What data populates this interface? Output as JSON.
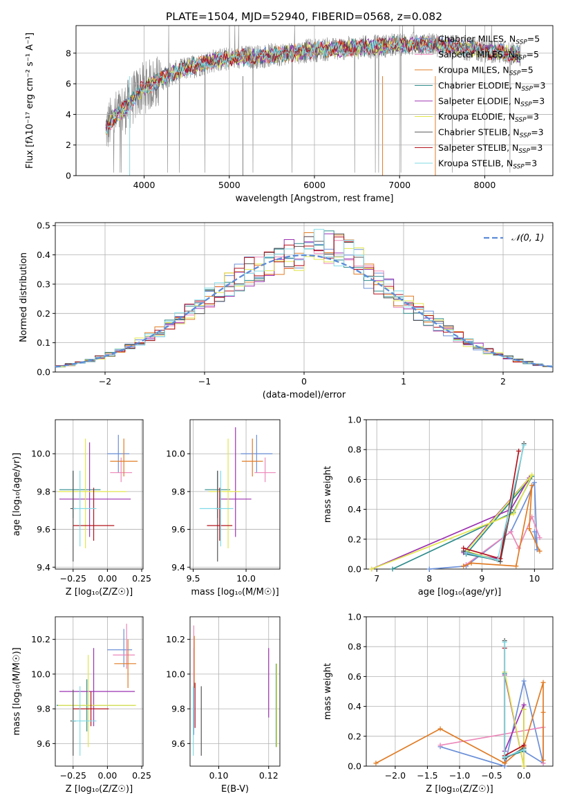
{
  "title": "PLATE=1504, MJD=52940, FIBERID=0568, z=0.082",
  "colors": {
    "Chabrier MILES": "#6a8fd8",
    "Salpeter MILES": "#ec87b9",
    "Kroupa MILES": "#e07b24",
    "Chabrier ELODIE": "#2e8b8b",
    "Salpeter ELODIE": "#9b30b0",
    "Kroupa ELODIE": "#e2e64a",
    "Chabrier STELIB": "#555555",
    "Salpeter STELIB": "#b3121b",
    "Kroupa STELIB": "#80dbe6",
    "gauss": "#5b8bd8",
    "data": "#808080"
  },
  "chart_data": [
    {
      "id": "spectrum",
      "type": "line",
      "xlabel": "wavelength [Angstrom, rest frame]",
      "ylabel": "Flux [fλ10⁻¹⁷ erg cm⁻² s⁻¹ A⁻¹]",
      "xlim": [
        3200,
        8800
      ],
      "ylim": [
        0,
        9.8
      ],
      "xticks": [
        4000,
        5000,
        6000,
        7000,
        8000
      ],
      "yticks": [
        0,
        2,
        4,
        6,
        8
      ],
      "legend": [
        "Chabrier MILES, N_SSP=5",
        "Salpeter MILES, N_SSP=5",
        "Kroupa MILES, N_SSP=5",
        "Chabrier ELODIE, N_SSP=3",
        "Salpeter ELODIE, N_SSP=3",
        "Kroupa ELODIE, N_SSP=3",
        "Chabrier STELIB, N_SSP=3",
        "Salpeter STELIB, N_SSP=3",
        "Kroupa STELIB, N_SSP=3"
      ],
      "legend_position": "right",
      "continuum": {
        "x": [
          3550,
          3650,
          3800,
          3950,
          4100,
          4300,
          4500,
          4800,
          5100,
          5400,
          5700,
          6000,
          6300,
          6600,
          6900,
          7200,
          7500,
          7800,
          8100,
          8400
        ],
        "y": [
          3.0,
          3.8,
          4.5,
          5.6,
          6.0,
          6.6,
          7.0,
          7.5,
          7.7,
          7.8,
          8.0,
          8.2,
          8.3,
          8.4,
          8.5,
          8.6,
          8.5,
          8.3,
          8.1,
          7.9
        ]
      }
    },
    {
      "id": "residual_hist",
      "type": "step",
      "xlabel": "(data-model)/error",
      "ylabel": "Normed distribution",
      "xlim": [
        -2.5,
        2.5
      ],
      "ylim": [
        0,
        0.51
      ],
      "xticks": [
        -2,
        -1,
        0,
        1,
        2
      ],
      "yticks": [
        0.0,
        0.1,
        0.2,
        0.3,
        0.4,
        0.5
      ],
      "legend": [
        "𝒩(0, 1)"
      ],
      "legend_position": "top-right",
      "bin_width": 0.1
    },
    {
      "id": "age_vs_Z",
      "type": "errorbar",
      "xlabel": "Z [log₁₀(Z/Z☉)]",
      "ylabel": "age  [log₁₀(age/yr)]",
      "xlim": [
        -0.38,
        0.26
      ],
      "ylim": [
        9.39,
        10.18
      ],
      "xticks": [
        -0.25,
        0.0,
        0.25
      ],
      "yticks": [
        9.4,
        9.6,
        9.8,
        10.0
      ],
      "points": [
        {
          "m": "Chabrier MILES",
          "x": 0.08,
          "xl": 0.08,
          "xh": 0.08,
          "y": 10.0,
          "yl": 0.1,
          "yh": 0.1
        },
        {
          "m": "Salpeter MILES",
          "x": 0.1,
          "xl": 0.08,
          "xh": 0.08,
          "y": 9.9,
          "yl": 0.05,
          "yh": 0.08
        },
        {
          "m": "Kroupa MILES",
          "x": 0.12,
          "xl": 0.1,
          "xh": 0.1,
          "y": 9.96,
          "yl": 0.08,
          "yh": 0.12
        },
        {
          "m": "Chabrier ELODIE",
          "x": -0.25,
          "xl": 0.1,
          "xh": 0.2,
          "y": 9.81,
          "yl": 0.15,
          "yh": 0.1
        },
        {
          "m": "Salpeter ELODIE",
          "x": -0.13,
          "xl": 0.22,
          "xh": 0.3,
          "y": 9.76,
          "yl": 0.2,
          "yh": 0.3
        },
        {
          "m": "Kroupa ELODIE",
          "x": -0.16,
          "xl": 0.2,
          "xh": 0.3,
          "y": 9.8,
          "yl": 0.3,
          "yh": 0.28
        },
        {
          "m": "Chabrier STELIB",
          "x": -0.25,
          "xl": 0.02,
          "xh": 0.02,
          "y": 9.71,
          "yl": 0.28,
          "yh": 0.2
        },
        {
          "m": "Salpeter STELIB",
          "x": -0.1,
          "xl": 0.15,
          "xh": 0.15,
          "y": 9.62,
          "yl": 0.08,
          "yh": 0.2
        },
        {
          "m": "Kroupa STELIB",
          "x": -0.2,
          "xl": 0.05,
          "xh": 0.12,
          "y": 9.71,
          "yl": 0.2,
          "yh": 0.2
        }
      ]
    },
    {
      "id": "age_vs_mass",
      "type": "errorbar",
      "xlabel": "mass [log₁₀(M/M☉)]",
      "ylabel": "",
      "xlim": [
        9.47,
        10.32
      ],
      "ylim": [
        9.39,
        10.18
      ],
      "xticks": [
        9.5,
        10.0
      ],
      "yticks": [
        9.4,
        9.6,
        9.8,
        10.0
      ],
      "points": [
        {
          "m": "Chabrier MILES",
          "x": 10.1,
          "xl": 0.15,
          "xh": 0.15,
          "y": 10.0,
          "yl": 0.1,
          "yh": 0.1
        },
        {
          "m": "Salpeter MILES",
          "x": 10.18,
          "xl": 0.1,
          "xh": 0.1,
          "y": 9.9,
          "yl": 0.05,
          "yh": 0.08
        },
        {
          "m": "Kroupa MILES",
          "x": 10.06,
          "xl": 0.1,
          "xh": 0.1,
          "y": 9.96,
          "yl": 0.08,
          "yh": 0.12
        },
        {
          "m": "Chabrier ELODIE",
          "x": 9.73,
          "xl": 0.12,
          "xh": 0.12,
          "y": 9.81,
          "yl": 0.15,
          "yh": 0.1
        },
        {
          "m": "Salpeter ELODIE",
          "x": 9.9,
          "xl": 0.15,
          "xh": 0.15,
          "y": 9.76,
          "yl": 0.2,
          "yh": 0.38
        },
        {
          "m": "Kroupa ELODIE",
          "x": 9.83,
          "xl": 0.18,
          "xh": 0.12,
          "y": 9.8,
          "yl": 0.3,
          "yh": 0.28
        },
        {
          "m": "Chabrier STELIB",
          "x": 9.73,
          "xl": 0.02,
          "xh": 0.02,
          "y": 9.71,
          "yl": 0.28,
          "yh": 0.2
        },
        {
          "m": "Salpeter STELIB",
          "x": 9.75,
          "xl": 0.12,
          "xh": 0.12,
          "y": 9.62,
          "yl": 0.08,
          "yh": 0.2
        },
        {
          "m": "Kroupa STELIB",
          "x": 9.76,
          "xl": 0.2,
          "xh": 0.12,
          "y": 9.71,
          "yl": 0.2,
          "yh": 0.2
        }
      ]
    },
    {
      "id": "weight_vs_age",
      "type": "line",
      "xlabel": "age  [log₁₀(age/yr)]",
      "ylabel": "mass weight",
      "xlim": [
        6.8,
        10.35
      ],
      "ylim": [
        0,
        1.0
      ],
      "xticks": [
        7,
        8,
        9,
        10
      ],
      "yticks": [
        0.0,
        0.2,
        0.4,
        0.6,
        0.8,
        1.0
      ],
      "series": [
        {
          "m": "Chabrier MILES",
          "x": [
            8.0,
            8.7,
            9.55,
            10.0,
            10.05,
            10.0
          ],
          "y": [
            0.0,
            0.02,
            0.25,
            0.58,
            0.13,
            0.25
          ]
        },
        {
          "m": "Salpeter MILES",
          "x": [
            8.7,
            9.55,
            9.7,
            9.95,
            10.1
          ],
          "y": [
            0.03,
            0.25,
            0.14,
            0.35,
            0.21
          ]
        },
        {
          "m": "Kroupa MILES",
          "x": [
            8.65,
            8.8,
            9.65,
            9.95,
            9.9,
            10.1
          ],
          "y": [
            0.02,
            0.04,
            0.02,
            0.56,
            0.27,
            0.12
          ]
        },
        {
          "m": "Chabrier ELODIE",
          "x": [
            7.3,
            9.6,
            9.95,
            8.7,
            9.3
          ],
          "y": [
            0.0,
            0.38,
            0.62,
            0.1,
            0.06
          ]
        },
        {
          "m": "Salpeter ELODIE",
          "x": [
            6.9,
            9.55,
            9.9,
            8.65,
            9.3
          ],
          "y": [
            0.0,
            0.4,
            0.61,
            0.11,
            0.07
          ]
        },
        {
          "m": "Kroupa ELODIE",
          "x": [
            6.9,
            9.6,
            9.95,
            8.7,
            9.3
          ],
          "y": [
            0.0,
            0.37,
            0.63,
            0.12,
            0.06
          ]
        },
        {
          "m": "Chabrier STELIB",
          "x": [
            8.65,
            9.35,
            9.8
          ],
          "y": [
            0.12,
            0.05,
            0.84
          ]
        },
        {
          "m": "Salpeter STELIB",
          "x": [
            8.65,
            9.35,
            9.7
          ],
          "y": [
            0.14,
            0.07,
            0.79
          ]
        },
        {
          "m": "Kroupa STELIB",
          "x": [
            8.7,
            9.3,
            9.8
          ],
          "y": [
            0.11,
            0.06,
            0.83
          ]
        }
      ]
    },
    {
      "id": "mass_vs_Z",
      "type": "errorbar",
      "xlabel": "Z [log₁₀(Z/Z☉)]",
      "ylabel": "mass [log₁₀(M/M☉)]",
      "xlim": [
        -0.38,
        0.26
      ],
      "ylim": [
        9.47,
        10.33
      ],
      "xticks": [
        -0.25,
        0.0,
        0.25
      ],
      "yticks": [
        9.6,
        9.8,
        10.0,
        10.2
      ],
      "points": [
        {
          "m": "Chabrier MILES",
          "x": 0.12,
          "xl": 0.12,
          "xh": 0.06,
          "y": 10.14,
          "yl": 0.1,
          "yh": 0.12
        },
        {
          "m": "Salpeter MILES",
          "x": 0.14,
          "xl": 0.1,
          "xh": 0.06,
          "y": 10.11,
          "yl": 0.08,
          "yh": 0.18
        },
        {
          "m": "Kroupa MILES",
          "x": 0.15,
          "xl": 0.1,
          "xh": 0.06,
          "y": 10.06,
          "yl": 0.14,
          "yh": 0.14
        },
        {
          "m": "Chabrier ELODIE",
          "x": -0.15,
          "xl": 0.22,
          "xh": 0.35,
          "y": 9.82,
          "yl": 0.15,
          "yh": 0.15
        },
        {
          "m": "Salpeter ELODIE",
          "x": -0.1,
          "xl": 0.25,
          "xh": 0.3,
          "y": 9.9,
          "yl": 0.2,
          "yh": 0.25
        },
        {
          "m": "Kroupa ELODIE",
          "x": -0.14,
          "xl": 0.22,
          "xh": 0.35,
          "y": 9.82,
          "yl": 0.24,
          "yh": 0.29
        },
        {
          "m": "Chabrier STELIB",
          "x": -0.25,
          "xl": 0.02,
          "xh": 0.02,
          "y": 9.73,
          "yl": 0.2,
          "yh": 0.18
        },
        {
          "m": "Salpeter STELIB",
          "x": -0.12,
          "xl": 0.13,
          "xh": 0.13,
          "y": 9.8,
          "yl": 0.1,
          "yh": 0.1
        },
        {
          "m": "Kroupa STELIB",
          "x": -0.2,
          "xl": 0.06,
          "xh": 0.12,
          "y": 9.73,
          "yl": 0.2,
          "yh": 0.2
        }
      ]
    },
    {
      "id": "mass_vs_ebv",
      "type": "errorbar",
      "xlabel": "E(B-V)",
      "ylabel": "",
      "xlim": [
        0.0885,
        0.1245
      ],
      "ylim": [
        9.47,
        10.33
      ],
      "xticks": [
        0.1,
        0.12
      ],
      "yticks": [
        9.6,
        9.8,
        10.0,
        10.2
      ],
      "points": [
        {
          "m": "Chabrier MILES",
          "x": 0.09,
          "xl": 0,
          "xh": 0,
          "y": 9.9,
          "yl": 0.25,
          "yh": 0.25
        },
        {
          "m": "Salpeter MILES",
          "x": 0.09,
          "xl": 0,
          "xh": 0,
          "y": 10.1,
          "yl": 0.15,
          "yh": 0.18
        },
        {
          "m": "Kroupa MILES",
          "x": 0.0902,
          "xl": 0,
          "xh": 0,
          "y": 10.06,
          "yl": 0.14,
          "yh": 0.16
        },
        {
          "m": "Chabrier ELODIE",
          "x": 0.123,
          "xl": 0,
          "xh": 0,
          "y": 9.82,
          "yl": 0.24,
          "yh": 0.24
        },
        {
          "m": "Salpeter ELODIE",
          "x": 0.12,
          "xl": 0,
          "xh": 0,
          "y": 9.95,
          "yl": 0.2,
          "yh": 0.2
        },
        {
          "m": "Kroupa ELODIE",
          "x": 0.1232,
          "xl": 0,
          "xh": 0,
          "y": 9.82,
          "yl": 0.24,
          "yh": 0.24
        },
        {
          "m": "Chabrier STELIB",
          "x": 0.093,
          "xl": 0,
          "xh": 0,
          "y": 9.73,
          "yl": 0.2,
          "yh": 0.2
        },
        {
          "m": "Salpeter STELIB",
          "x": 0.0905,
          "xl": 0,
          "xh": 0,
          "y": 9.82,
          "yl": 0.13,
          "yh": 0.13
        },
        {
          "m": "Kroupa STELIB",
          "x": 0.0898,
          "xl": 0,
          "xh": 0,
          "y": 9.73,
          "yl": 0.2,
          "yh": 0.2
        }
      ]
    },
    {
      "id": "weight_vs_Z",
      "type": "line",
      "xlabel": "Z [log₁₀(Z/Z☉)]",
      "ylabel": "mass weight",
      "xlim": [
        -2.45,
        0.45
      ],
      "ylim": [
        0,
        1.0
      ],
      "xticks": [
        -2.0,
        -1.5,
        -1.0,
        -0.5,
        0.0
      ],
      "yticks": [
        0.0,
        0.2,
        0.4,
        0.6,
        0.8,
        1.0
      ],
      "series": [
        {
          "m": "Chabrier MILES",
          "x": [
            -1.3,
            -0.3,
            0.0,
            0.3,
            0.0
          ],
          "y": [
            0.13,
            0.0,
            0.57,
            0.02,
            0.1
          ]
        },
        {
          "m": "Salpeter MILES",
          "x": [
            -1.3,
            0.3,
            0.3
          ],
          "y": [
            0.14,
            0.26,
            0.02
          ]
        },
        {
          "m": "Kroupa MILES",
          "x": [
            -2.3,
            -1.3,
            -0.3,
            0.0,
            0.3,
            0.3,
            0.3
          ],
          "y": [
            0.02,
            0.25,
            0.02,
            0.13,
            0.56,
            0.36,
            0.04
          ]
        },
        {
          "m": "Chabrier ELODIE",
          "x": [
            -0.3,
            -0.3,
            0.0,
            0.0
          ],
          "y": [
            0.62,
            0.06,
            0.1,
            0.38
          ]
        },
        {
          "m": "Salpeter ELODIE",
          "x": [
            -0.3,
            0.0,
            0.0,
            -0.3
          ],
          "y": [
            0.61,
            0.0,
            0.41,
            0.1
          ]
        },
        {
          "m": "Kroupa ELODIE",
          "x": [
            -0.3,
            0.0,
            0.0
          ],
          "y": [
            0.63,
            0.0,
            0.38
          ]
        },
        {
          "m": "Chabrier STELIB",
          "x": [
            -0.3,
            -0.3,
            0.0
          ],
          "y": [
            0.84,
            0.05,
            0.12
          ]
        },
        {
          "m": "Salpeter STELIB",
          "x": [
            -0.3,
            -0.3,
            0.0
          ],
          "y": [
            0.79,
            0.07,
            0.14
          ]
        },
        {
          "m": "Kroupa STELIB",
          "x": [
            -0.3,
            -0.3,
            0.0
          ],
          "y": [
            0.83,
            0.06,
            0.11
          ]
        }
      ]
    }
  ]
}
